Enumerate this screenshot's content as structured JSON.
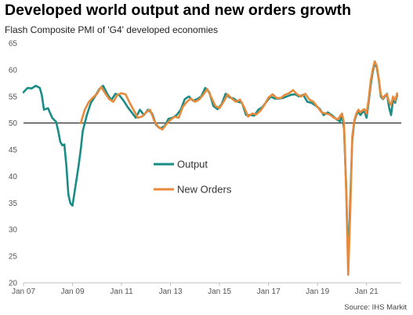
{
  "title": "Developed world output and new orders growth",
  "subtitle": "Flash Composite PMI of 'G4' developed economies",
  "source": "Source: IHS Markit",
  "colors": {
    "output": "#1a8c86",
    "new_orders": "#e88a3c",
    "axis": "#bfbfbf",
    "reference": "#000000"
  },
  "chart_data": {
    "type": "line",
    "title": "Developed world output and new orders growth",
    "subtitle": "Flash Composite PMI of 'G4' developed economies",
    "ylim": [
      20,
      65
    ],
    "yticks": [
      20,
      25,
      30,
      35,
      40,
      45,
      50,
      55,
      60,
      65
    ],
    "xlim": [
      "2007-01",
      "2022-06"
    ],
    "xticks": [
      "Jan 07",
      "Jan 09",
      "Jan 11",
      "Jan 13",
      "Jan 15",
      "Jan 17",
      "Jan 19",
      "Jan 21"
    ],
    "reference_line": 50,
    "grid": false,
    "legend_placement": "center-left",
    "series": [
      {
        "name": "Output",
        "color": "#1a8c86",
        "points": [
          [
            "2007-01",
            55.8
          ],
          [
            "2007-03",
            56.6
          ],
          [
            "2007-05",
            56.5
          ],
          [
            "2007-07",
            57.0
          ],
          [
            "2007-09",
            56.6
          ],
          [
            "2007-10",
            55.2
          ],
          [
            "2007-11",
            52.5
          ],
          [
            "2008-01",
            52.8
          ],
          [
            "2008-03",
            51.0
          ],
          [
            "2008-05",
            50.2
          ],
          [
            "2008-06",
            48.5
          ],
          [
            "2008-07",
            46.5
          ],
          [
            "2008-08",
            45.8
          ],
          [
            "2008-09",
            46.0
          ],
          [
            "2008-10",
            42.0
          ],
          [
            "2008-11",
            36.5
          ],
          [
            "2008-12",
            34.9
          ],
          [
            "2009-01",
            34.5
          ],
          [
            "2009-02",
            37.0
          ],
          [
            "2009-04",
            42.0
          ],
          [
            "2009-05",
            45.0
          ],
          [
            "2009-06",
            48.5
          ],
          [
            "2009-08",
            51.5
          ],
          [
            "2009-10",
            53.8
          ],
          [
            "2009-12",
            55.0
          ],
          [
            "2010-02",
            56.3
          ],
          [
            "2010-04",
            57.0
          ],
          [
            "2010-06",
            55.5
          ],
          [
            "2010-08",
            54.3
          ],
          [
            "2010-10",
            55.5
          ],
          [
            "2010-12",
            55.2
          ],
          [
            "2011-02",
            54.2
          ],
          [
            "2011-04",
            53.0
          ],
          [
            "2011-06",
            52.0
          ],
          [
            "2011-08",
            51.0
          ],
          [
            "2011-10",
            52.5
          ],
          [
            "2011-12",
            51.5
          ],
          [
            "2012-02",
            52.5
          ],
          [
            "2012-04",
            51.8
          ],
          [
            "2012-06",
            49.6
          ],
          [
            "2012-08",
            49.0
          ],
          [
            "2012-10",
            49.4
          ],
          [
            "2012-12",
            50.8
          ],
          [
            "2013-02",
            51.0
          ],
          [
            "2013-04",
            51.5
          ],
          [
            "2013-06",
            52.5
          ],
          [
            "2013-08",
            54.5
          ],
          [
            "2013-10",
            55.0
          ],
          [
            "2013-12",
            54.2
          ],
          [
            "2014-02",
            54.5
          ],
          [
            "2014-04",
            55.0
          ],
          [
            "2014-06",
            56.6
          ],
          [
            "2014-08",
            55.8
          ],
          [
            "2014-10",
            53.2
          ],
          [
            "2014-12",
            52.6
          ],
          [
            "2015-02",
            53.5
          ],
          [
            "2015-04",
            55.5
          ],
          [
            "2015-06",
            54.8
          ],
          [
            "2015-08",
            54.6
          ],
          [
            "2015-10",
            54.0
          ],
          [
            "2015-12",
            53.8
          ],
          [
            "2016-02",
            51.5
          ],
          [
            "2016-04",
            51.5
          ],
          [
            "2016-06",
            51.4
          ],
          [
            "2016-08",
            52.5
          ],
          [
            "2016-10",
            53.0
          ],
          [
            "2016-12",
            54.0
          ],
          [
            "2017-02",
            55.0
          ],
          [
            "2017-04",
            54.6
          ],
          [
            "2017-06",
            54.6
          ],
          [
            "2017-08",
            54.7
          ],
          [
            "2017-10",
            55.0
          ],
          [
            "2017-12",
            55.3
          ],
          [
            "2018-02",
            55.4
          ],
          [
            "2018-04",
            55.0
          ],
          [
            "2018-06",
            55.3
          ],
          [
            "2018-08",
            54.0
          ],
          [
            "2018-10",
            53.8
          ],
          [
            "2018-12",
            53.3
          ],
          [
            "2019-02",
            52.7
          ],
          [
            "2019-04",
            51.5
          ],
          [
            "2019-06",
            52.0
          ],
          [
            "2019-08",
            51.5
          ],
          [
            "2019-10",
            50.8
          ],
          [
            "2019-12",
            50.3
          ],
          [
            "2020-01",
            51.4
          ],
          [
            "2020-02",
            49.0
          ],
          [
            "2020-03",
            38.0
          ],
          [
            "2020-04",
            23.5
          ],
          [
            "2020-05",
            35.5
          ],
          [
            "2020-06",
            46.8
          ],
          [
            "2020-07",
            50.3
          ],
          [
            "2020-08",
            51.5
          ],
          [
            "2020-09",
            52.2
          ],
          [
            "2020-10",
            51.5
          ],
          [
            "2020-11",
            52.0
          ],
          [
            "2020-12",
            52.2
          ],
          [
            "2021-01",
            51.0
          ],
          [
            "2021-02",
            53.8
          ],
          [
            "2021-03",
            57.0
          ],
          [
            "2021-04",
            59.5
          ],
          [
            "2021-05",
            61.3
          ],
          [
            "2021-06",
            60.5
          ],
          [
            "2021-07",
            58.2
          ],
          [
            "2021-08",
            55.0
          ],
          [
            "2021-09",
            54.5
          ],
          [
            "2021-10",
            55.0
          ],
          [
            "2021-11",
            55.5
          ],
          [
            "2021-12",
            53.0
          ],
          [
            "2022-01",
            51.5
          ],
          [
            "2022-02",
            54.5
          ],
          [
            "2022-03",
            53.8
          ],
          [
            "2022-04",
            55.2
          ]
        ]
      },
      {
        "name": "New Orders",
        "color": "#e88a3c",
        "points": [
          [
            "2009-05",
            50.0
          ],
          [
            "2009-07",
            52.5
          ],
          [
            "2009-09",
            54.0
          ],
          [
            "2009-11",
            54.8
          ],
          [
            "2010-01",
            55.5
          ],
          [
            "2010-03",
            56.8
          ],
          [
            "2010-05",
            55.6
          ],
          [
            "2010-07",
            54.5
          ],
          [
            "2010-09",
            54.0
          ],
          [
            "2010-11",
            55.3
          ],
          [
            "2011-01",
            55.6
          ],
          [
            "2011-03",
            55.4
          ],
          [
            "2011-05",
            53.8
          ],
          [
            "2011-07",
            52.4
          ],
          [
            "2011-09",
            51.0
          ],
          [
            "2011-11",
            51.2
          ],
          [
            "2012-01",
            52.0
          ],
          [
            "2012-03",
            52.5
          ],
          [
            "2012-05",
            50.5
          ],
          [
            "2012-07",
            49.2
          ],
          [
            "2012-09",
            48.8
          ],
          [
            "2012-11",
            49.8
          ],
          [
            "2013-01",
            50.6
          ],
          [
            "2013-03",
            51.2
          ],
          [
            "2013-05",
            51.0
          ],
          [
            "2013-07",
            53.0
          ],
          [
            "2013-09",
            54.0
          ],
          [
            "2013-11",
            54.6
          ],
          [
            "2014-01",
            54.0
          ],
          [
            "2014-03",
            54.4
          ],
          [
            "2014-05",
            55.3
          ],
          [
            "2014-07",
            56.4
          ],
          [
            "2014-09",
            54.8
          ],
          [
            "2014-11",
            53.2
          ],
          [
            "2015-01",
            52.8
          ],
          [
            "2015-03",
            54.0
          ],
          [
            "2015-05",
            55.4
          ],
          [
            "2015-07",
            54.6
          ],
          [
            "2015-09",
            54.0
          ],
          [
            "2015-11",
            54.4
          ],
          [
            "2016-01",
            53.0
          ],
          [
            "2016-03",
            51.2
          ],
          [
            "2016-05",
            51.8
          ],
          [
            "2016-07",
            51.6
          ],
          [
            "2016-09",
            52.3
          ],
          [
            "2016-11",
            53.4
          ],
          [
            "2017-01",
            54.8
          ],
          [
            "2017-03",
            55.4
          ],
          [
            "2017-05",
            54.7
          ],
          [
            "2017-07",
            54.7
          ],
          [
            "2017-09",
            55.3
          ],
          [
            "2017-11",
            55.6
          ],
          [
            "2018-01",
            56.2
          ],
          [
            "2018-03",
            55.4
          ],
          [
            "2018-05",
            55.0
          ],
          [
            "2018-07",
            55.5
          ],
          [
            "2018-09",
            54.4
          ],
          [
            "2018-11",
            54.0
          ],
          [
            "2019-01",
            53.0
          ],
          [
            "2019-03",
            52.0
          ],
          [
            "2019-05",
            51.8
          ],
          [
            "2019-07",
            51.6
          ],
          [
            "2019-09",
            51.0
          ],
          [
            "2019-11",
            50.7
          ],
          [
            "2020-01",
            51.8
          ],
          [
            "2020-02",
            50.0
          ],
          [
            "2020-03",
            37.5
          ],
          [
            "2020-04",
            21.5
          ],
          [
            "2020-05",
            33.0
          ],
          [
            "2020-06",
            47.5
          ],
          [
            "2020-07",
            50.5
          ],
          [
            "2020-08",
            51.8
          ],
          [
            "2020-09",
            52.5
          ],
          [
            "2020-10",
            52.0
          ],
          [
            "2020-11",
            52.4
          ],
          [
            "2020-12",
            52.6
          ],
          [
            "2021-01",
            51.8
          ],
          [
            "2021-02",
            54.3
          ],
          [
            "2021-03",
            57.8
          ],
          [
            "2021-04",
            60.0
          ],
          [
            "2021-05",
            61.6
          ],
          [
            "2021-06",
            60.8
          ],
          [
            "2021-07",
            58.4
          ],
          [
            "2021-08",
            55.4
          ],
          [
            "2021-09",
            54.6
          ],
          [
            "2021-10",
            55.2
          ],
          [
            "2021-11",
            55.4
          ],
          [
            "2021-12",
            54.0
          ],
          [
            "2022-01",
            53.4
          ],
          [
            "2022-02",
            55.0
          ],
          [
            "2022-03",
            54.2
          ],
          [
            "2022-04",
            55.6
          ]
        ]
      }
    ]
  }
}
